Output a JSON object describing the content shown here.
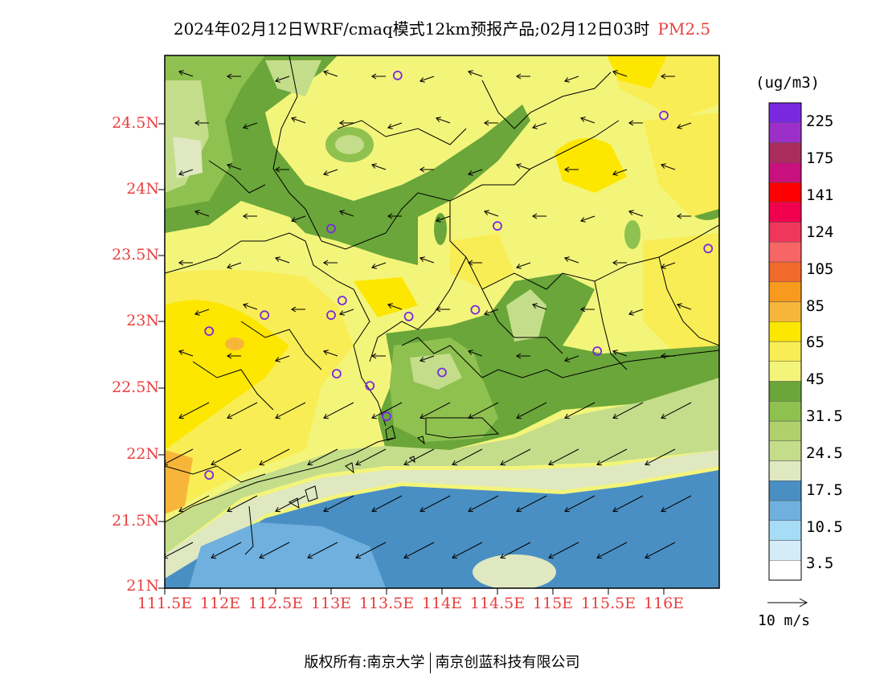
{
  "title": {
    "main": "2024年02月12日WRF/cmaq模式12km预报产品;02月12日03时",
    "variable": "PM2.5"
  },
  "map": {
    "lat_ticks": [
      "24.5N",
      "24N",
      "23.5N",
      "23N",
      "22.5N",
      "22N",
      "21.5N",
      "21N"
    ],
    "lon_ticks": [
      "111.5E",
      "112E",
      "112.5E",
      "113E",
      "113.5E",
      "114E",
      "114.5E",
      "115E",
      "115.5E",
      "116E"
    ],
    "lat_range": [
      21.0,
      25.0
    ],
    "lon_range": [
      111.5,
      116.7
    ],
    "colors": {
      "deep_ocean": "#4a8fc4",
      "shallow_ocean": "#6fb0de",
      "pale_green": "#dfe8c0",
      "green_light": "#c4dd8a",
      "green_mid": "#8fc150",
      "green_dark": "#6aa63a",
      "yellow_pale": "#f3f57a",
      "yellow": "#f9ed55",
      "yellow_gold": "#fde600",
      "orange_light": "#f7b63a"
    }
  },
  "colorbar": {
    "unit": "(ug/m3)",
    "colors": [
      "#ffffff",
      "#d4ecf8",
      "#a6dcf5",
      "#6fb0de",
      "#4a8fc4",
      "#dfe8c0",
      "#c4dd8a",
      "#b0d06c",
      "#8fc150",
      "#6aa63a",
      "#f3f57a",
      "#f9ed55",
      "#fde600",
      "#f7b63a",
      "#f79a1e",
      "#f26a2c",
      "#f76565",
      "#f0365b",
      "#f0004e",
      "#ff0000",
      "#c8107e",
      "#aa2c5e",
      "#9c2fc8",
      "#7a28e0"
    ],
    "labels": [
      "3.5",
      "10.5",
      "17.5",
      "24.5",
      "31.5",
      "45",
      "65",
      "85",
      "105",
      "124",
      "141",
      "175",
      "225"
    ]
  },
  "wind_reference": {
    "label": "10 m/s"
  },
  "stations": [
    {
      "lon": 113.6,
      "lat": 24.85
    },
    {
      "lon": 116.0,
      "lat": 24.55
    },
    {
      "lon": 113.0,
      "lat": 23.7
    },
    {
      "lon": 114.5,
      "lat": 23.72
    },
    {
      "lon": 116.4,
      "lat": 23.55
    },
    {
      "lon": 113.1,
      "lat": 23.16
    },
    {
      "lon": 112.4,
      "lat": 23.05
    },
    {
      "lon": 113.0,
      "lat": 23.05
    },
    {
      "lon": 113.7,
      "lat": 23.04
    },
    {
      "lon": 114.3,
      "lat": 23.09
    },
    {
      "lon": 111.9,
      "lat": 22.93
    },
    {
      "lon": 115.4,
      "lat": 22.78
    },
    {
      "lon": 114.0,
      "lat": 22.62
    },
    {
      "lon": 113.05,
      "lat": 22.61
    },
    {
      "lon": 113.35,
      "lat": 22.52
    },
    {
      "lon": 113.5,
      "lat": 22.29
    },
    {
      "lon": 111.9,
      "lat": 21.85
    }
  ],
  "footer": {
    "left": "版权所有:南京大学",
    "right": "南京创蓝科技有限公司"
  }
}
